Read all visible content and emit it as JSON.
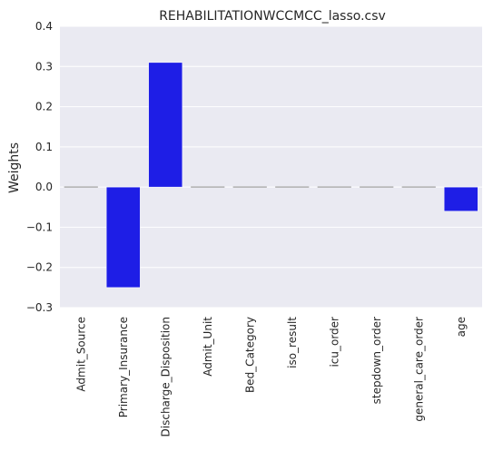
{
  "chart_data": {
    "type": "bar",
    "title": "REHABILITATIONWCCMCC_lasso.csv",
    "xlabel": "",
    "ylabel": "Weights",
    "categories": [
      "Admit_Source",
      "Primary_Insurance",
      "Discharge_Disposition",
      "Admit_Unit",
      "Bed_Category",
      "iso_result",
      "icu_order",
      "stepdown_order",
      "general_care_order",
      "age"
    ],
    "values": [
      0.0,
      -0.25,
      0.31,
      0.0,
      0.0,
      0.0,
      0.0,
      0.0,
      0.0,
      -0.06
    ],
    "ylim": [
      -0.3,
      0.4
    ],
    "yticks": [
      0.4,
      0.3,
      0.2,
      0.1,
      0.0,
      -0.1,
      -0.2,
      -0.3
    ],
    "ytick_labels": [
      "0.4",
      "0.3",
      "0.2",
      "0.1",
      "0.0",
      "−0.1",
      "−0.2",
      "−0.3"
    ],
    "grid": true,
    "legend": "none",
    "colors": {
      "bar": "#1e1ee6",
      "zero_bar": "#b0b0b0",
      "plot_background": "#eaeaf2",
      "grid": "#ffffff"
    }
  }
}
